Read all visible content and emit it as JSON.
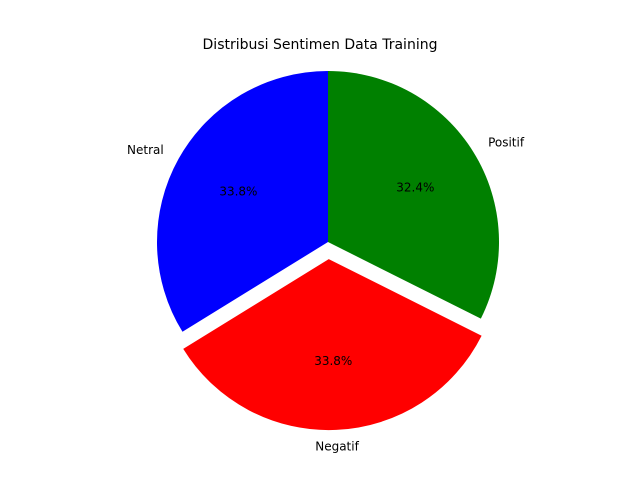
{
  "chart_data": {
    "type": "pie",
    "title": "Distribusi Sentimen Data Training",
    "slices": [
      {
        "label": "Netral",
        "value": 33.8,
        "pct_label": "33.8%",
        "color": "#0000ff",
        "explode": false
      },
      {
        "label": "Negatif",
        "value": 33.8,
        "pct_label": "33.8%",
        "color": "#ff0000",
        "explode": true
      },
      {
        "label": "Positif",
        "value": 32.4,
        "pct_label": "32.4%",
        "color": "#008000",
        "explode": false
      }
    ],
    "start_angle_deg": 90,
    "direction": "counterclockwise"
  }
}
